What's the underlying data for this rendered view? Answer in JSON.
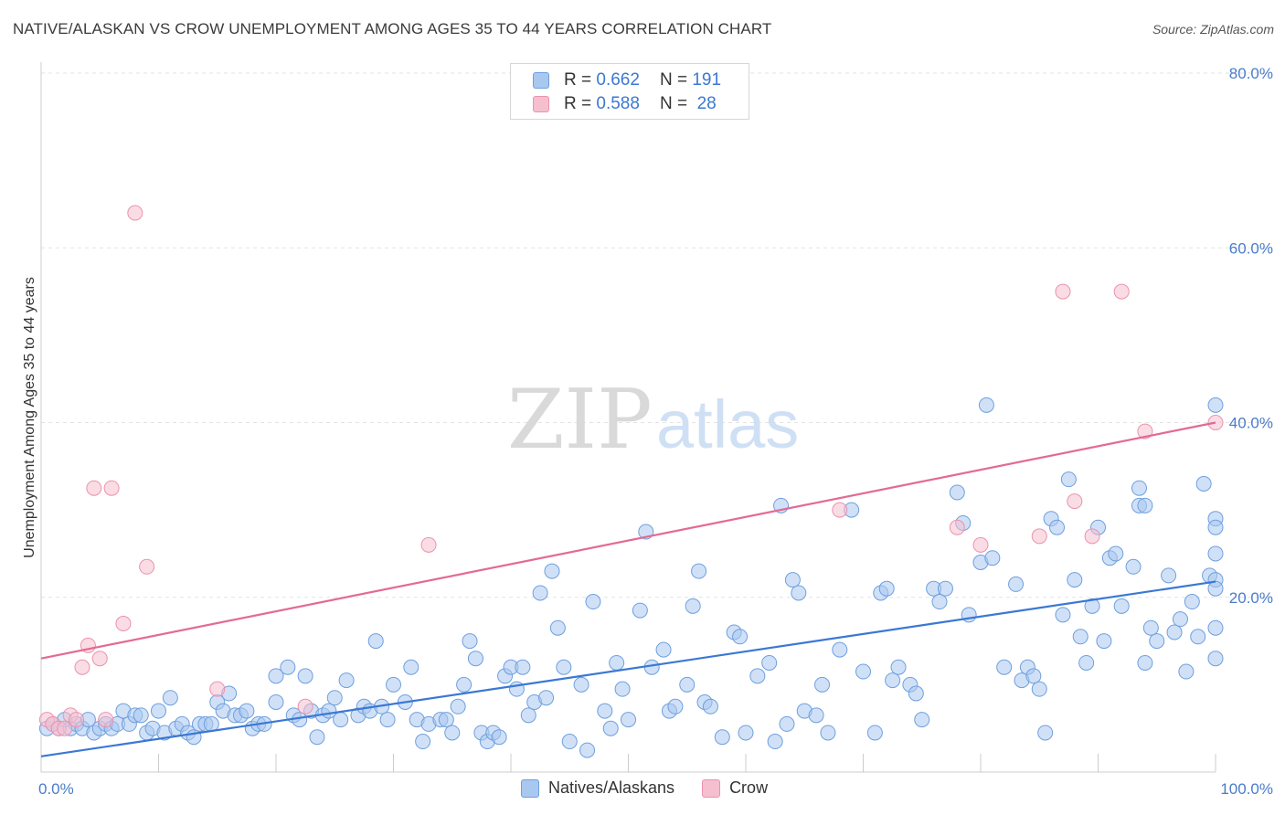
{
  "title": "NATIVE/ALASKAN VS CROW UNEMPLOYMENT AMONG AGES 35 TO 44 YEARS CORRELATION CHART",
  "source": "Source: ZipAtlas.com",
  "watermark": {
    "zip": "ZIP",
    "atlas": "atlas"
  },
  "legend_top": [
    {
      "r_label": "R =",
      "r_value": "0.662",
      "n_label": "N =",
      "n_value": "191"
    },
    {
      "r_label": "R =",
      "r_value": "0.588",
      "n_label": "N =",
      "n_value": "28"
    }
  ],
  "legend_bottom": [
    "Natives/Alaskans",
    "Crow"
  ],
  "colors": {
    "blue_fill": "#a9c8f0",
    "blue_stroke": "#6f9fde",
    "blue_line": "#3a78d4",
    "pink_fill": "#f6bfd0",
    "pink_stroke": "#eb93ae",
    "pink_line": "#e36a93",
    "grid": "#e3e3e3",
    "tick_text": "#4a7cc9"
  },
  "chart_data": {
    "type": "scatter",
    "title": "NATIVE/ALASKAN VS CROW UNEMPLOYMENT AMONG AGES 35 TO 44 YEARS CORRELATION CHART",
    "xlabel": "",
    "ylabel": "Unemployment Among Ages 35 to 44 years",
    "xlim": [
      0,
      100
    ],
    "ylim": [
      0,
      80
    ],
    "x_tick_labels": [
      "0.0%",
      "100.0%"
    ],
    "y_ticks": [
      20,
      40,
      60,
      80
    ],
    "y_tick_labels": [
      "20.0%",
      "40.0%",
      "60.0%",
      "80.0%"
    ],
    "grid": true,
    "legend_position": "top-center",
    "series": [
      {
        "name": "Natives/Alaskans",
        "color": "#a9c8f0",
        "r": 0.662,
        "n": 191,
        "trend": {
          "x": [
            0,
            100
          ],
          "y": [
            1.8,
            21.8
          ]
        },
        "points": [
          [
            0.5,
            5
          ],
          [
            1,
            5.5
          ],
          [
            1.5,
            5
          ],
          [
            2,
            6
          ],
          [
            2.5,
            5
          ],
          [
            3,
            5.5
          ],
          [
            3.5,
            5
          ],
          [
            4,
            6
          ],
          [
            4.5,
            4.5
          ],
          [
            5,
            5
          ],
          [
            5.5,
            5.5
          ],
          [
            6,
            5
          ],
          [
            6.5,
            5.5
          ],
          [
            7,
            7
          ],
          [
            7.5,
            5.5
          ],
          [
            8,
            6.5
          ],
          [
            8.5,
            6.5
          ],
          [
            9,
            4.5
          ],
          [
            9.5,
            5
          ],
          [
            10,
            7
          ],
          [
            10.5,
            4.5
          ],
          [
            11,
            8.5
          ],
          [
            11.5,
            5
          ],
          [
            12,
            5.5
          ],
          [
            12.5,
            4.5
          ],
          [
            13,
            4
          ],
          [
            13.5,
            5.5
          ],
          [
            14,
            5.5
          ],
          [
            14.5,
            5.5
          ],
          [
            15,
            8
          ],
          [
            15.5,
            7
          ],
          [
            16,
            9
          ],
          [
            16.5,
            6.5
          ],
          [
            17,
            6.5
          ],
          [
            17.5,
            7
          ],
          [
            18,
            5
          ],
          [
            18.5,
            5.5
          ],
          [
            19,
            5.5
          ],
          [
            20,
            8
          ],
          [
            20,
            11
          ],
          [
            21,
            12
          ],
          [
            21.5,
            6.5
          ],
          [
            22,
            6
          ],
          [
            22.5,
            11
          ],
          [
            23,
            7
          ],
          [
            23.5,
            4
          ],
          [
            24,
            6.5
          ],
          [
            24.5,
            7
          ],
          [
            25,
            8.5
          ],
          [
            25.5,
            6
          ],
          [
            26,
            10.5
          ],
          [
            27,
            6.5
          ],
          [
            27.5,
            7.5
          ],
          [
            28,
            7
          ],
          [
            28.5,
            15
          ],
          [
            29,
            7.5
          ],
          [
            29.5,
            6
          ],
          [
            30,
            10
          ],
          [
            31,
            8
          ],
          [
            31.5,
            12
          ],
          [
            32,
            6
          ],
          [
            32.5,
            3.5
          ],
          [
            33,
            5.5
          ],
          [
            34,
            6
          ],
          [
            34.5,
            6
          ],
          [
            35,
            4.5
          ],
          [
            35.5,
            7.5
          ],
          [
            36,
            10
          ],
          [
            36.5,
            15
          ],
          [
            37,
            13
          ],
          [
            37.5,
            4.5
          ],
          [
            38,
            3.5
          ],
          [
            38.5,
            4.5
          ],
          [
            39,
            4
          ],
          [
            39.5,
            11
          ],
          [
            40,
            12
          ],
          [
            40.5,
            9.5
          ],
          [
            41,
            12
          ],
          [
            41.5,
            6.5
          ],
          [
            42,
            8
          ],
          [
            42.5,
            20.5
          ],
          [
            43,
            8.5
          ],
          [
            43.5,
            23
          ],
          [
            44,
            16.5
          ],
          [
            44.5,
            12
          ],
          [
            45,
            3.5
          ],
          [
            46,
            10
          ],
          [
            46.5,
            2.5
          ],
          [
            47,
            19.5
          ],
          [
            48,
            7
          ],
          [
            48.5,
            5
          ],
          [
            49,
            12.5
          ],
          [
            49.5,
            9.5
          ],
          [
            50,
            6
          ],
          [
            51,
            18.5
          ],
          [
            51.5,
            27.5
          ],
          [
            52,
            12
          ],
          [
            53,
            14
          ],
          [
            53.5,
            7
          ],
          [
            54,
            7.5
          ],
          [
            55,
            10
          ],
          [
            55.5,
            19
          ],
          [
            56,
            23
          ],
          [
            56.5,
            8
          ],
          [
            57,
            7.5
          ],
          [
            58,
            4
          ],
          [
            59,
            16
          ],
          [
            59.5,
            15.5
          ],
          [
            60,
            4.5
          ],
          [
            61,
            11
          ],
          [
            62,
            12.5
          ],
          [
            62.5,
            3.5
          ],
          [
            63,
            30.5
          ],
          [
            63.5,
            5.5
          ],
          [
            64,
            22
          ],
          [
            64.5,
            20.5
          ],
          [
            65,
            7
          ],
          [
            66,
            6.5
          ],
          [
            66.5,
            10
          ],
          [
            67,
            4.5
          ],
          [
            68,
            14
          ],
          [
            69,
            30
          ],
          [
            70,
            11.5
          ],
          [
            71,
            4.5
          ],
          [
            71.5,
            20.5
          ],
          [
            72,
            21
          ],
          [
            72.5,
            10.5
          ],
          [
            73,
            12
          ],
          [
            74,
            10
          ],
          [
            74.5,
            9
          ],
          [
            75,
            6
          ],
          [
            76,
            21
          ],
          [
            76.5,
            19.5
          ],
          [
            77,
            21
          ],
          [
            78,
            32
          ],
          [
            78.5,
            28.5
          ],
          [
            79,
            18
          ],
          [
            80,
            24
          ],
          [
            80.5,
            42
          ],
          [
            81,
            24.5
          ],
          [
            82,
            12
          ],
          [
            83,
            21.5
          ],
          [
            83.5,
            10.5
          ],
          [
            84,
            12
          ],
          [
            84.5,
            11
          ],
          [
            85,
            9.5
          ],
          [
            85.5,
            4.5
          ],
          [
            86,
            29
          ],
          [
            86.5,
            28
          ],
          [
            87,
            18
          ],
          [
            87.5,
            33.5
          ],
          [
            88,
            22
          ],
          [
            88.5,
            15.5
          ],
          [
            89,
            12.5
          ],
          [
            89.5,
            19
          ],
          [
            90,
            28
          ],
          [
            90.5,
            15
          ],
          [
            91,
            24.5
          ],
          [
            91.5,
            25
          ],
          [
            92,
            19
          ],
          [
            93,
            23.5
          ],
          [
            93.5,
            30.5
          ],
          [
            94,
            12.5
          ],
          [
            94.5,
            16.5
          ],
          [
            95,
            15
          ],
          [
            96,
            22.5
          ],
          [
            96.5,
            16
          ],
          [
            97,
            17.5
          ],
          [
            97.5,
            11.5
          ],
          [
            98,
            19.5
          ],
          [
            98.5,
            15.5
          ],
          [
            99,
            33
          ],
          [
            99.5,
            22.5
          ],
          [
            100,
            42
          ],
          [
            100,
            16.5
          ],
          [
            100,
            13
          ],
          [
            100,
            22
          ],
          [
            100,
            21
          ],
          [
            100,
            29
          ],
          [
            100,
            28
          ],
          [
            100,
            25
          ],
          [
            93.5,
            32.5
          ],
          [
            94,
            30.5
          ]
        ]
      },
      {
        "name": "Crow",
        "color": "#f6bfd0",
        "r": 0.588,
        "n": 28,
        "trend": {
          "x": [
            0,
            100
          ],
          "y": [
            13,
            40
          ]
        },
        "points": [
          [
            0.5,
            6
          ],
          [
            1,
            5.5
          ],
          [
            1.5,
            5
          ],
          [
            2,
            5
          ],
          [
            2.5,
            6.5
          ],
          [
            3,
            6
          ],
          [
            3.5,
            12
          ],
          [
            4,
            14.5
          ],
          [
            4.5,
            32.5
          ],
          [
            5,
            13
          ],
          [
            5.5,
            6
          ],
          [
            6,
            32.5
          ],
          [
            7,
            17
          ],
          [
            8,
            64
          ],
          [
            9,
            23.5
          ],
          [
            15,
            9.5
          ],
          [
            22.5,
            7.5
          ],
          [
            33,
            26
          ],
          [
            68,
            30
          ],
          [
            78,
            28
          ],
          [
            80,
            26
          ],
          [
            85,
            27
          ],
          [
            87,
            55
          ],
          [
            88,
            31
          ],
          [
            89.5,
            27
          ],
          [
            92,
            55
          ],
          [
            94,
            39
          ],
          [
            100,
            40
          ]
        ]
      }
    ]
  }
}
